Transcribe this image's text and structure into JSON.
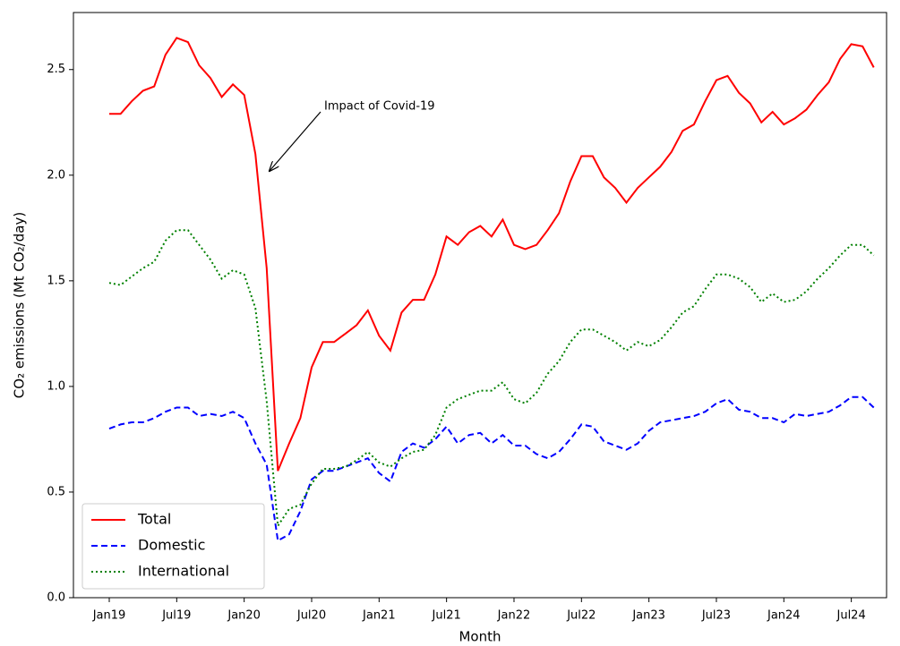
{
  "chart_data": {
    "type": "line",
    "x_label": "Month",
    "y_label": "CO₂ emissions (Mt CO₂/day)",
    "annotation": "Impact of Covid-19",
    "categories": [
      "Jan19",
      null,
      null,
      null,
      null,
      null,
      "Jul19",
      null,
      null,
      null,
      null,
      null,
      "Jan20",
      null,
      null,
      null,
      null,
      null,
      "Jul20",
      null,
      null,
      null,
      null,
      null,
      "Jan21",
      null,
      null,
      null,
      null,
      null,
      "Jul21",
      null,
      null,
      null,
      null,
      null,
      "Jan22",
      null,
      null,
      null,
      null,
      null,
      "Jul22",
      null,
      null,
      null,
      null,
      null,
      "Jan23",
      null,
      null,
      null,
      null,
      null,
      "Jul23",
      null,
      null,
      null,
      null,
      null,
      "Jan24",
      null,
      null,
      null,
      null,
      null,
      "Jul24",
      null,
      null
    ],
    "series": [
      {
        "name": "Total",
        "color": "#ff0000",
        "linestyle": "solid",
        "values": [
          2.29,
          2.29,
          2.35,
          2.4,
          2.42,
          2.57,
          2.65,
          2.63,
          2.52,
          2.46,
          2.37,
          2.43,
          2.38,
          2.1,
          1.56,
          0.6,
          0.73,
          0.85,
          1.09,
          1.21,
          1.21,
          1.25,
          1.29,
          1.36,
          1.24,
          1.17,
          1.35,
          1.41,
          1.41,
          1.53,
          1.71,
          1.67,
          1.73,
          1.76,
          1.71,
          1.79,
          1.67,
          1.65,
          1.67,
          1.74,
          1.82,
          1.97,
          2.09,
          2.09,
          1.99,
          1.94,
          1.87,
          1.94,
          1.99,
          2.04,
          2.11,
          2.21,
          2.24,
          2.35,
          2.45,
          2.47,
          2.39,
          2.34,
          2.25,
          2.3,
          2.24,
          2.27,
          2.31,
          2.38,
          2.44,
          2.55,
          2.62,
          2.61,
          2.51
        ]
      },
      {
        "name": "Domestic",
        "color": "#0000ff",
        "linestyle": "dashed",
        "values": [
          0.8,
          0.82,
          0.83,
          0.83,
          0.85,
          0.88,
          0.9,
          0.9,
          0.86,
          0.87,
          0.86,
          0.88,
          0.85,
          0.73,
          0.63,
          0.27,
          0.3,
          0.41,
          0.56,
          0.6,
          0.6,
          0.62,
          0.64,
          0.66,
          0.59,
          0.55,
          0.69,
          0.73,
          0.71,
          0.75,
          0.81,
          0.73,
          0.77,
          0.78,
          0.73,
          0.77,
          0.72,
          0.72,
          0.68,
          0.66,
          0.69,
          0.75,
          0.82,
          0.81,
          0.74,
          0.72,
          0.7,
          0.73,
          0.79,
          0.83,
          0.84,
          0.85,
          0.86,
          0.88,
          0.92,
          0.94,
          0.89,
          0.88,
          0.85,
          0.85,
          0.83,
          0.87,
          0.86,
          0.87,
          0.88,
          0.91,
          0.95,
          0.95,
          0.9
        ]
      },
      {
        "name": "International",
        "color": "#008000",
        "linestyle": "dotted",
        "values": [
          1.49,
          1.48,
          1.52,
          1.56,
          1.59,
          1.69,
          1.74,
          1.74,
          1.67,
          1.6,
          1.51,
          1.55,
          1.53,
          1.37,
          0.93,
          0.34,
          0.42,
          0.44,
          0.54,
          0.61,
          0.61,
          0.62,
          0.65,
          0.69,
          0.64,
          0.62,
          0.66,
          0.69,
          0.7,
          0.77,
          0.9,
          0.94,
          0.96,
          0.98,
          0.98,
          1.02,
          0.94,
          0.92,
          0.97,
          1.06,
          1.12,
          1.21,
          1.27,
          1.27,
          1.24,
          1.21,
          1.17,
          1.21,
          1.19,
          1.22,
          1.28,
          1.35,
          1.38,
          1.46,
          1.53,
          1.53,
          1.51,
          1.47,
          1.4,
          1.44,
          1.4,
          1.41,
          1.45,
          1.51,
          1.56,
          1.62,
          1.67,
          1.67,
          1.62
        ]
      }
    ],
    "ylim": [
      0,
      2.77
    ],
    "yticks": [
      {
        "value": 0,
        "label": "0.0"
      },
      0.5,
      {
        "value": 1,
        "label": "1.0"
      },
      1.5,
      {
        "value": 2,
        "label": "2.0"
      },
      2.5
    ],
    "grid": false,
    "legend": "lower left"
  }
}
